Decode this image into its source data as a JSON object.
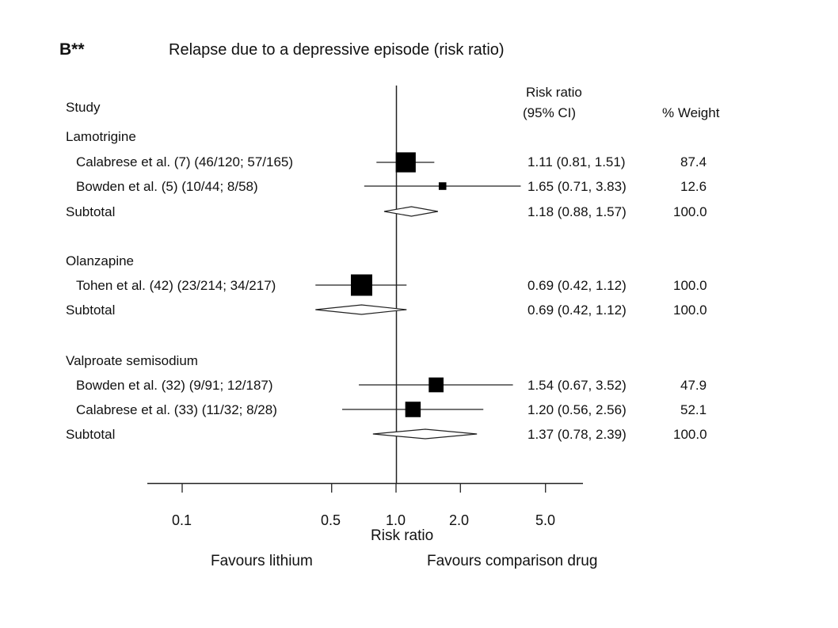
{
  "figure": {
    "panel_label": "B**",
    "title": "Relapse due to a depressive episode (risk ratio)",
    "favours_left": "Favours lithium",
    "favours_right": "Favours comparison drug"
  },
  "columns": {
    "study": "Study",
    "rr_line1": "Risk ratio",
    "rr_line2": "(95% CI)",
    "weight": "% Weight"
  },
  "chart_data": {
    "type": "forest",
    "title": "Relapse due to a depressive episode (risk ratio)",
    "xlabel": "Risk ratio",
    "x_scale": "log",
    "reference_line": 1.0,
    "xticks": [
      0.1,
      0.5,
      1.0,
      2.0,
      5.0
    ],
    "xtick_labels": [
      "0.1",
      "0.5",
      "1.0",
      "2.0",
      "5.0"
    ],
    "grid": false,
    "groups": [
      {
        "name": "Lamotrigine",
        "studies": [
          {
            "label": "Calabrese et al. (7) (46/120; 57/165)",
            "rr": 1.11,
            "lo": 0.81,
            "hi": 1.51,
            "weight": 87.4,
            "text": "1.11 (0.81, 1.51)",
            "weight_text": "87.4"
          },
          {
            "label": "Bowden et al. (5) (10/44; 8/58)",
            "rr": 1.65,
            "lo": 0.71,
            "hi": 3.83,
            "weight": 12.6,
            "text": "1.65 (0.71, 3.83)",
            "weight_text": "12.6"
          }
        ],
        "subtotal": {
          "label": "Subtotal",
          "rr": 1.18,
          "lo": 0.88,
          "hi": 1.57,
          "text": "1.18 (0.88, 1.57)",
          "weight_text": "100.0"
        }
      },
      {
        "name": "Olanzapine",
        "studies": [
          {
            "label": "Tohen et al. (42) (23/214; 34/217)",
            "rr": 0.69,
            "lo": 0.42,
            "hi": 1.12,
            "weight": 100.0,
            "text": "0.69 (0.42, 1.12)",
            "weight_text": "100.0"
          }
        ],
        "subtotal": {
          "label": "Subtotal",
          "rr": 0.69,
          "lo": 0.42,
          "hi": 1.12,
          "text": "0.69 (0.42, 1.12)",
          "weight_text": "100.0"
        }
      },
      {
        "name": "Valproate semisodium",
        "studies": [
          {
            "label": "Bowden et al. (32) (9/91; 12/187)",
            "rr": 1.54,
            "lo": 0.67,
            "hi": 3.52,
            "weight": 47.9,
            "text": "1.54 (0.67, 3.52)",
            "weight_text": "47.9"
          },
          {
            "label": "Calabrese et al. (33) (11/32; 8/28)",
            "rr": 1.2,
            "lo": 0.56,
            "hi": 2.56,
            "weight": 52.1,
            "text": "1.20 (0.56, 2.56)",
            "weight_text": "52.1"
          }
        ],
        "subtotal": {
          "label": "Subtotal",
          "rr": 1.37,
          "lo": 0.78,
          "hi": 2.39,
          "text": "1.37 (0.78, 2.39)",
          "weight_text": "100.0"
        }
      }
    ]
  }
}
